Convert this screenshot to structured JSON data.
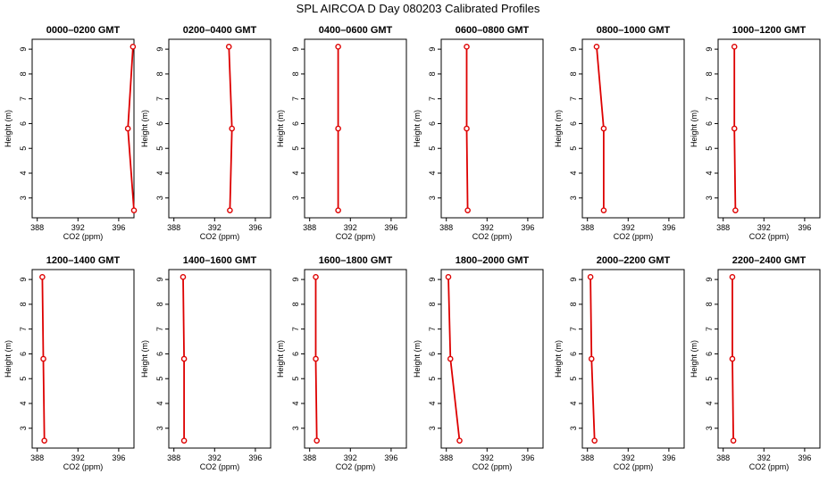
{
  "figure": {
    "title": "SPL AIRCOA D  Day 080203  Calibrated Profiles",
    "line_color": "#dd0000"
  },
  "chart_data": [
    {
      "type": "line",
      "title": "0000–0200 GMT",
      "xlabel": "CO2 (ppm)",
      "ylabel": "Height (m)",
      "xlim": [
        387.5,
        397.5
      ],
      "ylim": [
        2.2,
        9.4
      ],
      "xticks": [
        388,
        392,
        396
      ],
      "yticks": [
        3,
        4,
        5,
        6,
        7,
        8,
        9
      ],
      "grid": false,
      "series": [
        {
          "x": [
            397.5,
            396.9,
            397.4
          ],
          "y": [
            2.5,
            5.8,
            9.1
          ]
        }
      ]
    },
    {
      "type": "line",
      "title": "0200–0400 GMT",
      "xlabel": "CO2 (ppm)",
      "ylabel": "Height (m)",
      "xlim": [
        387.5,
        397.5
      ],
      "ylim": [
        2.2,
        9.4
      ],
      "xticks": [
        388,
        392,
        396
      ],
      "yticks": [
        3,
        4,
        5,
        6,
        7,
        8,
        9
      ],
      "grid": false,
      "series": [
        {
          "x": [
            393.5,
            393.7,
            393.4
          ],
          "y": [
            2.5,
            5.8,
            9.1
          ]
        }
      ]
    },
    {
      "type": "line",
      "title": "0400–0600 GMT",
      "xlabel": "CO2 (ppm)",
      "ylabel": "Height (m)",
      "xlim": [
        387.5,
        397.5
      ],
      "ylim": [
        2.2,
        9.4
      ],
      "xticks": [
        388,
        392,
        396
      ],
      "yticks": [
        3,
        4,
        5,
        6,
        7,
        8,
        9
      ],
      "grid": false,
      "series": [
        {
          "x": [
            390.8,
            390.8,
            390.8
          ],
          "y": [
            2.5,
            5.8,
            9.1
          ]
        }
      ]
    },
    {
      "type": "line",
      "title": "0600–0800 GMT",
      "xlabel": "CO2 (ppm)",
      "ylabel": "Height (m)",
      "xlim": [
        387.5,
        397.5
      ],
      "ylim": [
        2.2,
        9.4
      ],
      "xticks": [
        388,
        392,
        396
      ],
      "yticks": [
        3,
        4,
        5,
        6,
        7,
        8,
        9
      ],
      "grid": false,
      "series": [
        {
          "x": [
            390.1,
            390.0,
            390.0
          ],
          "y": [
            2.5,
            5.8,
            9.1
          ]
        }
      ]
    },
    {
      "type": "line",
      "title": "0800–1000 GMT",
      "xlabel": "CO2 (ppm)",
      "ylabel": "Height (m)",
      "xlim": [
        387.5,
        397.5
      ],
      "ylim": [
        2.2,
        9.4
      ],
      "xticks": [
        388,
        392,
        396
      ],
      "yticks": [
        3,
        4,
        5,
        6,
        7,
        8,
        9
      ],
      "grid": false,
      "series": [
        {
          "x": [
            389.6,
            389.6,
            388.9
          ],
          "y": [
            2.5,
            5.8,
            9.1
          ]
        }
      ]
    },
    {
      "type": "line",
      "title": "1000–1200 GMT",
      "xlabel": "CO2 (ppm)",
      "ylabel": "Height (m)",
      "xlim": [
        387.5,
        397.5
      ],
      "ylim": [
        2.2,
        9.4
      ],
      "xticks": [
        388,
        392,
        396
      ],
      "yticks": [
        3,
        4,
        5,
        6,
        7,
        8,
        9
      ],
      "grid": false,
      "series": [
        {
          "x": [
            389.2,
            389.1,
            389.1
          ],
          "y": [
            2.5,
            5.8,
            9.1
          ]
        }
      ]
    },
    {
      "type": "line",
      "title": "1200–1400 GMT",
      "xlabel": "CO2 (ppm)",
      "ylabel": "Height (m)",
      "xlim": [
        387.5,
        397.5
      ],
      "ylim": [
        2.2,
        9.4
      ],
      "xticks": [
        388,
        392,
        396
      ],
      "yticks": [
        3,
        4,
        5,
        6,
        7,
        8,
        9
      ],
      "grid": false,
      "series": [
        {
          "x": [
            388.7,
            388.6,
            388.5
          ],
          "y": [
            2.5,
            5.8,
            9.1
          ]
        }
      ]
    },
    {
      "type": "line",
      "title": "1400–1600 GMT",
      "xlabel": "CO2 (ppm)",
      "ylabel": "Height (m)",
      "xlim": [
        387.5,
        397.5
      ],
      "ylim": [
        2.2,
        9.4
      ],
      "xticks": [
        388,
        392,
        396
      ],
      "yticks": [
        3,
        4,
        5,
        6,
        7,
        8,
        9
      ],
      "grid": false,
      "series": [
        {
          "x": [
            389.0,
            389.0,
            388.9
          ],
          "y": [
            2.5,
            5.8,
            9.1
          ]
        }
      ]
    },
    {
      "type": "line",
      "title": "1600–1800 GMT",
      "xlabel": "CO2 (ppm)",
      "ylabel": "Height (m)",
      "xlim": [
        387.5,
        397.5
      ],
      "ylim": [
        2.2,
        9.4
      ],
      "xticks": [
        388,
        392,
        396
      ],
      "yticks": [
        3,
        4,
        5,
        6,
        7,
        8,
        9
      ],
      "grid": false,
      "series": [
        {
          "x": [
            388.7,
            388.6,
            388.6
          ],
          "y": [
            2.5,
            5.8,
            9.1
          ]
        }
      ]
    },
    {
      "type": "line",
      "title": "1800–2000 GMT",
      "xlabel": "CO2 (ppm)",
      "ylabel": "Height (m)",
      "xlim": [
        387.5,
        397.5
      ],
      "ylim": [
        2.2,
        9.4
      ],
      "xticks": [
        388,
        392,
        396
      ],
      "yticks": [
        3,
        4,
        5,
        6,
        7,
        8,
        9
      ],
      "grid": false,
      "series": [
        {
          "x": [
            389.3,
            388.4,
            388.2
          ],
          "y": [
            2.5,
            5.8,
            9.1
          ]
        }
      ]
    },
    {
      "type": "line",
      "title": "2000–2200 GMT",
      "xlabel": "CO2 (ppm)",
      "ylabel": "Height (m)",
      "xlim": [
        387.5,
        397.5
      ],
      "ylim": [
        2.2,
        9.4
      ],
      "xticks": [
        388,
        392,
        396
      ],
      "yticks": [
        3,
        4,
        5,
        6,
        7,
        8,
        9
      ],
      "grid": false,
      "series": [
        {
          "x": [
            388.7,
            388.4,
            388.3
          ],
          "y": [
            2.5,
            5.8,
            9.1
          ]
        }
      ]
    },
    {
      "type": "line",
      "title": "2200–2400 GMT",
      "xlabel": "CO2 (ppm)",
      "ylabel": "Height (m)",
      "xlim": [
        387.5,
        397.5
      ],
      "ylim": [
        2.2,
        9.4
      ],
      "xticks": [
        388,
        392,
        396
      ],
      "yticks": [
        3,
        4,
        5,
        6,
        7,
        8,
        9
      ],
      "grid": false,
      "series": [
        {
          "x": [
            389.0,
            388.9,
            388.9
          ],
          "y": [
            2.5,
            5.8,
            9.1
          ]
        }
      ]
    }
  ]
}
